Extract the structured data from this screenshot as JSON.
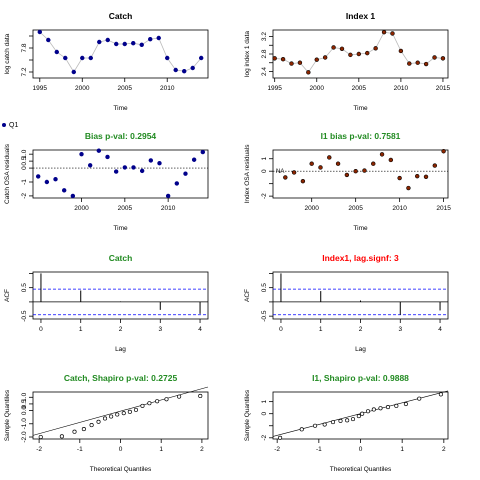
{
  "legend": {
    "label": "Q1"
  },
  "colors": {
    "black": "#000000",
    "green": "#228B22",
    "red": "#FF0000",
    "blue": "#0000FF",
    "navy": "#00008B",
    "brown": "#8B2500",
    "grayline": "#BBBBBB"
  },
  "chart_data": [
    {
      "type": "line",
      "title": "Catch",
      "title_color": "#000000",
      "xlabel": "Time",
      "ylabel": "log catch data",
      "xlim": [
        1994.2,
        2014.8
      ],
      "ylim": [
        7.05,
        8.25
      ],
      "xticks": [
        1995,
        2000,
        2005,
        2010
      ],
      "yticks": [
        7.2,
        7.5,
        7.8,
        8.1
      ],
      "ytick_labels": [
        "7.2",
        "",
        "7.8",
        ""
      ],
      "point_color": "#00008B",
      "point_fill": "#00008B",
      "x": [
        1995,
        1996,
        1997,
        1998,
        1999,
        2000,
        2001,
        2002,
        2003,
        2004,
        2005,
        2006,
        2007,
        2008,
        2009,
        2010,
        2011,
        2012,
        2013,
        2014
      ],
      "y": [
        8.2,
        8.0,
        7.7,
        7.55,
        7.2,
        7.55,
        7.55,
        7.95,
        8.0,
        7.9,
        7.9,
        7.92,
        7.88,
        8.02,
        8.05,
        7.55,
        7.25,
        7.22,
        7.3,
        7.55
      ]
    },
    {
      "type": "line",
      "title": "Index 1",
      "title_color": "#000000",
      "xlabel": "Time",
      "ylabel": "log index 1 data",
      "xlim": [
        1994.8,
        2015.6
      ],
      "ylim": [
        2.25,
        3.35
      ],
      "xticks": [
        1995,
        2000,
        2005,
        2010,
        2015
      ],
      "yticks": [
        2.4,
        2.6,
        2.8,
        3.0,
        3.2
      ],
      "ytick_labels": [
        "2.4",
        "",
        "2.8",
        "",
        "3.2"
      ],
      "point_color": "#000000",
      "point_fill": "#8B2500",
      "x": [
        1995,
        1996,
        1997,
        1998,
        1999,
        2000,
        2001,
        2002,
        2003,
        2004,
        2005,
        2006,
        2007,
        2008,
        2009,
        2010,
        2011,
        2012,
        2013,
        2014,
        2015
      ],
      "y": [
        2.7,
        2.68,
        2.58,
        2.6,
        2.38,
        2.67,
        2.72,
        2.95,
        2.92,
        2.78,
        2.8,
        2.82,
        2.93,
        3.3,
        3.27,
        2.87,
        2.58,
        2.6,
        2.57,
        2.72,
        2.7
      ]
    },
    {
      "type": "scatter",
      "title": "Bias p-val: 0.2954",
      "title_color": "#228B22",
      "xlabel": "Time",
      "ylabel": "Catch OSA residuals",
      "xlim": [
        1994.4,
        2014.6
      ],
      "ylim": [
        -2.15,
        1.3
      ],
      "xticks": [
        2000,
        2005,
        2010
      ],
      "yticks": [
        -2,
        -1,
        0,
        0.5,
        1
      ],
      "ytick_labels": [
        "-2",
        "-1",
        "0",
        "0.5",
        "1.0"
      ],
      "hline": 0.0,
      "point_color": "#00008B",
      "point_fill": "#00008B",
      "x": [
        1995,
        1996,
        1997,
        1998,
        1999,
        2000,
        2001,
        2002,
        2003,
        2004,
        2005,
        2006,
        2007,
        2008,
        2009,
        2010,
        2011,
        2012,
        2013,
        2014
      ],
      "y": [
        -0.6,
        -1.0,
        -0.8,
        -1.6,
        -2.0,
        1.0,
        0.2,
        1.25,
        0.8,
        -0.25,
        0.05,
        0.05,
        -0.2,
        0.55,
        0.35,
        -2.0,
        -1.1,
        -0.4,
        0.6,
        1.15
      ]
    },
    {
      "type": "scatter",
      "title": "I1 bias p-val: 0.7581",
      "title_color": "#228B22",
      "xlabel": "Time",
      "ylabel": "Index OSA residuals",
      "xlim": [
        1995.6,
        2015.5
      ],
      "ylim": [
        -2.15,
        1.7
      ],
      "xticks": [
        2000,
        2005,
        2010,
        2015
      ],
      "yticks": [
        -2,
        -1,
        0,
        1
      ],
      "ytick_labels": [
        "-2",
        "",
        "0",
        "1"
      ],
      "hline": 0.0,
      "annotation": "NA",
      "point_color": "#000000",
      "point_fill": "#8B2500",
      "x": [
        1997,
        1998,
        1999,
        2000,
        2001,
        2002,
        2003,
        2004,
        2005,
        2006,
        2007,
        2008,
        2009,
        2010,
        2011,
        2012,
        2013,
        2014,
        2015
      ],
      "y": [
        -0.5,
        -0.1,
        -0.8,
        0.6,
        0.3,
        1.1,
        0.6,
        -0.3,
        0.0,
        0.05,
        0.6,
        1.35,
        0.9,
        -0.55,
        -1.35,
        -0.4,
        -0.45,
        0.45,
        1.6
      ]
    },
    {
      "type": "bar",
      "title": "Catch",
      "title_color": "#228B22",
      "xlabel": "Lag",
      "ylabel": "ACF",
      "xlim": [
        -0.2,
        4.2
      ],
      "ylim": [
        -0.6,
        1.05
      ],
      "xticks": [
        0,
        1,
        2,
        3,
        4
      ],
      "yticks": [
        -0.5,
        0.0,
        0.5,
        1.0
      ],
      "ytick_labels": [
        "-0.5",
        "",
        "0.5",
        ""
      ],
      "lags": [
        0,
        1,
        2,
        3,
        4
      ],
      "values": [
        1.0,
        0.4,
        0.02,
        -0.28,
        -0.42
      ],
      "conf": 0.45
    },
    {
      "type": "bar",
      "title": "Index1, lag.signf: 3",
      "title_color": "#FF0000",
      "xlabel": "Lag",
      "ylabel": "ACF",
      "xlim": [
        -0.2,
        4.2
      ],
      "ylim": [
        -0.6,
        1.05
      ],
      "xticks": [
        0,
        1,
        2,
        3,
        4
      ],
      "yticks": [
        -0.5,
        0.0,
        0.5,
        1.0
      ],
      "ytick_labels": [
        "-0.5",
        "",
        "0.5",
        ""
      ],
      "lags": [
        0,
        1,
        2,
        3,
        4
      ],
      "values": [
        1.0,
        0.38,
        0.05,
        -0.45,
        -0.3
      ],
      "conf": 0.45
    },
    {
      "type": "scatter",
      "title": "Catch, Shapiro p-val: 0.2725",
      "title_color": "#228B22",
      "xlabel": "Theoretical Quantiles",
      "ylabel": "Sample Quantiles",
      "xlim": [
        -2.15,
        2.15
      ],
      "ylim": [
        -2.15,
        1.4
      ],
      "xticks": [
        -2,
        -1,
        0,
        1,
        2
      ],
      "yticks": [
        -2,
        -1,
        0,
        0.5,
        1
      ],
      "ytick_labels": [
        "-2.0",
        "-1.0",
        "0.0",
        "0.5",
        "1.0"
      ],
      "qqline": {
        "slope": 0.85,
        "intercept": -0.05
      },
      "point_shape": "open",
      "x": [
        -1.96,
        -1.44,
        -1.13,
        -0.9,
        -0.71,
        -0.54,
        -0.38,
        -0.23,
        -0.08,
        0.08,
        0.23,
        0.38,
        0.54,
        0.71,
        0.9,
        1.13,
        1.44,
        1.96
      ],
      "y": [
        -2.0,
        -1.95,
        -1.6,
        -1.4,
        -1.1,
        -0.85,
        -0.6,
        -0.45,
        -0.3,
        -0.2,
        -0.1,
        0.05,
        0.35,
        0.55,
        0.7,
        0.85,
        1.05,
        1.1
      ]
    },
    {
      "type": "scatter",
      "title": "I1, Shapiro p-val: 0.9888",
      "title_color": "#228B22",
      "xlabel": "Theoretical Quantiles",
      "ylabel": "Sample Quantiles",
      "xlim": [
        -2.1,
        2.1
      ],
      "ylim": [
        -2.1,
        1.8
      ],
      "xticks": [
        -2,
        -1,
        0,
        1,
        2
      ],
      "yticks": [
        -2,
        -1,
        0,
        1
      ],
      "ytick_labels": [
        "-2",
        "",
        "0",
        "1"
      ],
      "qqline": {
        "slope": 0.9,
        "intercept": 0.0
      },
      "point_shape": "open",
      "x": [
        -1.93,
        -1.41,
        -1.09,
        -0.86,
        -0.66,
        -0.48,
        -0.32,
        -0.18,
        -0.04,
        0.04,
        0.18,
        0.32,
        0.48,
        0.66,
        0.86,
        1.09,
        1.41,
        1.93
      ],
      "y": [
        -2.0,
        -1.3,
        -1.0,
        -0.9,
        -0.7,
        -0.6,
        -0.55,
        -0.45,
        -0.2,
        0.0,
        0.2,
        0.35,
        0.45,
        0.55,
        0.65,
        0.8,
        1.25,
        1.6
      ]
    }
  ]
}
